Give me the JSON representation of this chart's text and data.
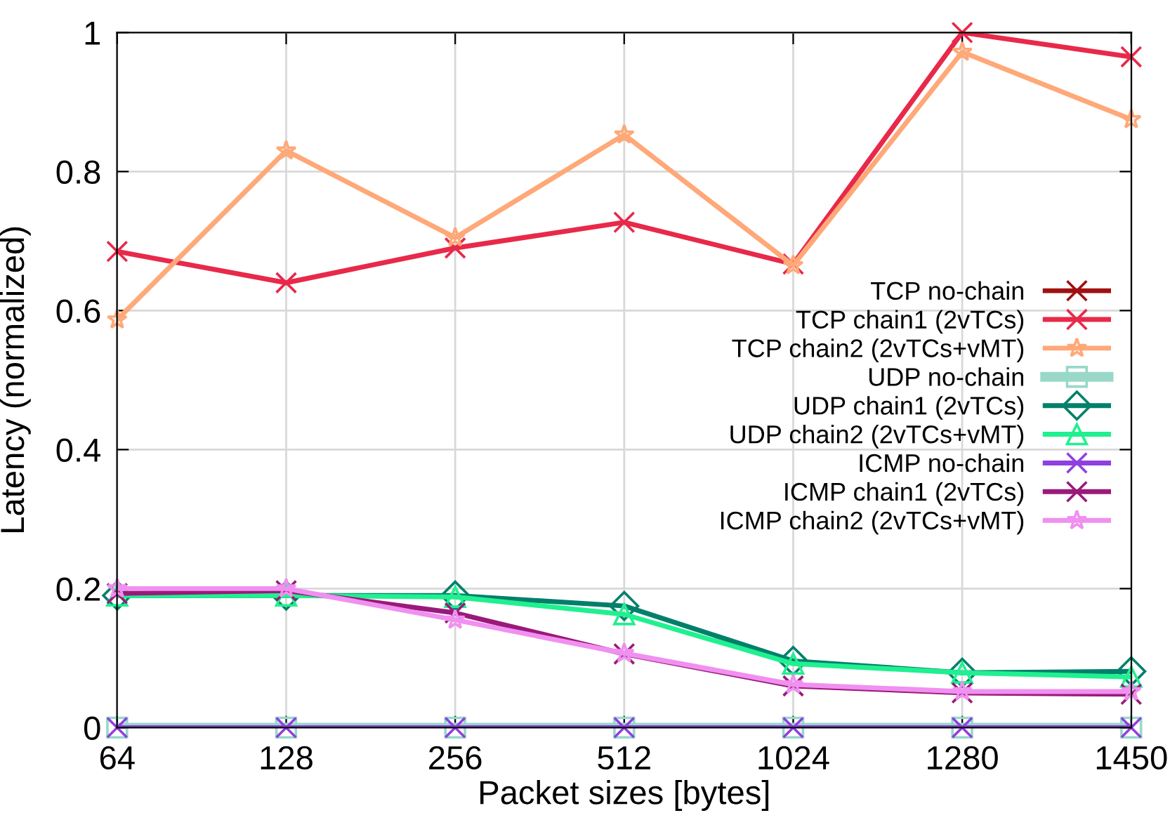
{
  "chart_data": {
    "type": "line",
    "xlabel": "Packet sizes [bytes]",
    "ylabel": "Latency (normalized)",
    "categories": [
      "64",
      "128",
      "256",
      "512",
      "1024",
      "1280",
      "1450"
    ],
    "ylim": [
      0,
      1
    ],
    "yticks": [
      0,
      0.2,
      0.4,
      0.6,
      0.8,
      1
    ],
    "grid": true,
    "legend": "right",
    "line_style": "solid",
    "series": [
      {
        "name": "TCP no-chain",
        "color": "#a01010",
        "marker": "cross",
        "values": [
          null,
          null,
          null,
          null,
          null,
          null,
          null
        ]
      },
      {
        "name": "TCP chain1 (2vTCs)",
        "color": "#e8294a",
        "marker": "cross",
        "values": [
          0.685,
          0.64,
          0.69,
          0.727,
          0.667,
          1.0,
          0.965
        ]
      },
      {
        "name": "TCP chain2 (2vTCs+vMT)",
        "color": "#ffa878",
        "marker": "star",
        "values": [
          0.587,
          0.83,
          0.705,
          0.853,
          0.665,
          0.972,
          0.875
        ]
      },
      {
        "name": "UDP no-chain",
        "color": "#99d8c9",
        "marker": "square",
        "values": [
          0,
          0,
          0,
          0,
          0,
          0,
          0
        ]
      },
      {
        "name": "UDP chain1 (2vTCs)",
        "color": "#00806a",
        "marker": "diamond",
        "values": [
          0.19,
          0.19,
          0.19,
          0.175,
          0.096,
          0.079,
          0.081
        ]
      },
      {
        "name": "UDP chain2 (2vTCs+vMT)",
        "color": "#20f090",
        "marker": "triangle",
        "values": [
          0.19,
          0.19,
          0.188,
          0.163,
          0.092,
          0.079,
          0.073
        ]
      },
      {
        "name": "ICMP no-chain",
        "color": "#9040e0",
        "marker": "cross",
        "values": [
          0,
          0,
          0,
          0,
          0,
          0,
          0
        ]
      },
      {
        "name": "ICMP chain1 (2vTCs)",
        "color": "#9a1a7a",
        "marker": "cross",
        "values": [
          0.193,
          0.197,
          0.165,
          0.106,
          0.06,
          0.05,
          0.048
        ]
      },
      {
        "name": "ICMP chain2 (2vTCs+vMT)",
        "color": "#f090f0",
        "marker": "star",
        "values": [
          0.2,
          0.2,
          0.155,
          0.107,
          0.062,
          0.052,
          0.052
        ]
      }
    ]
  }
}
